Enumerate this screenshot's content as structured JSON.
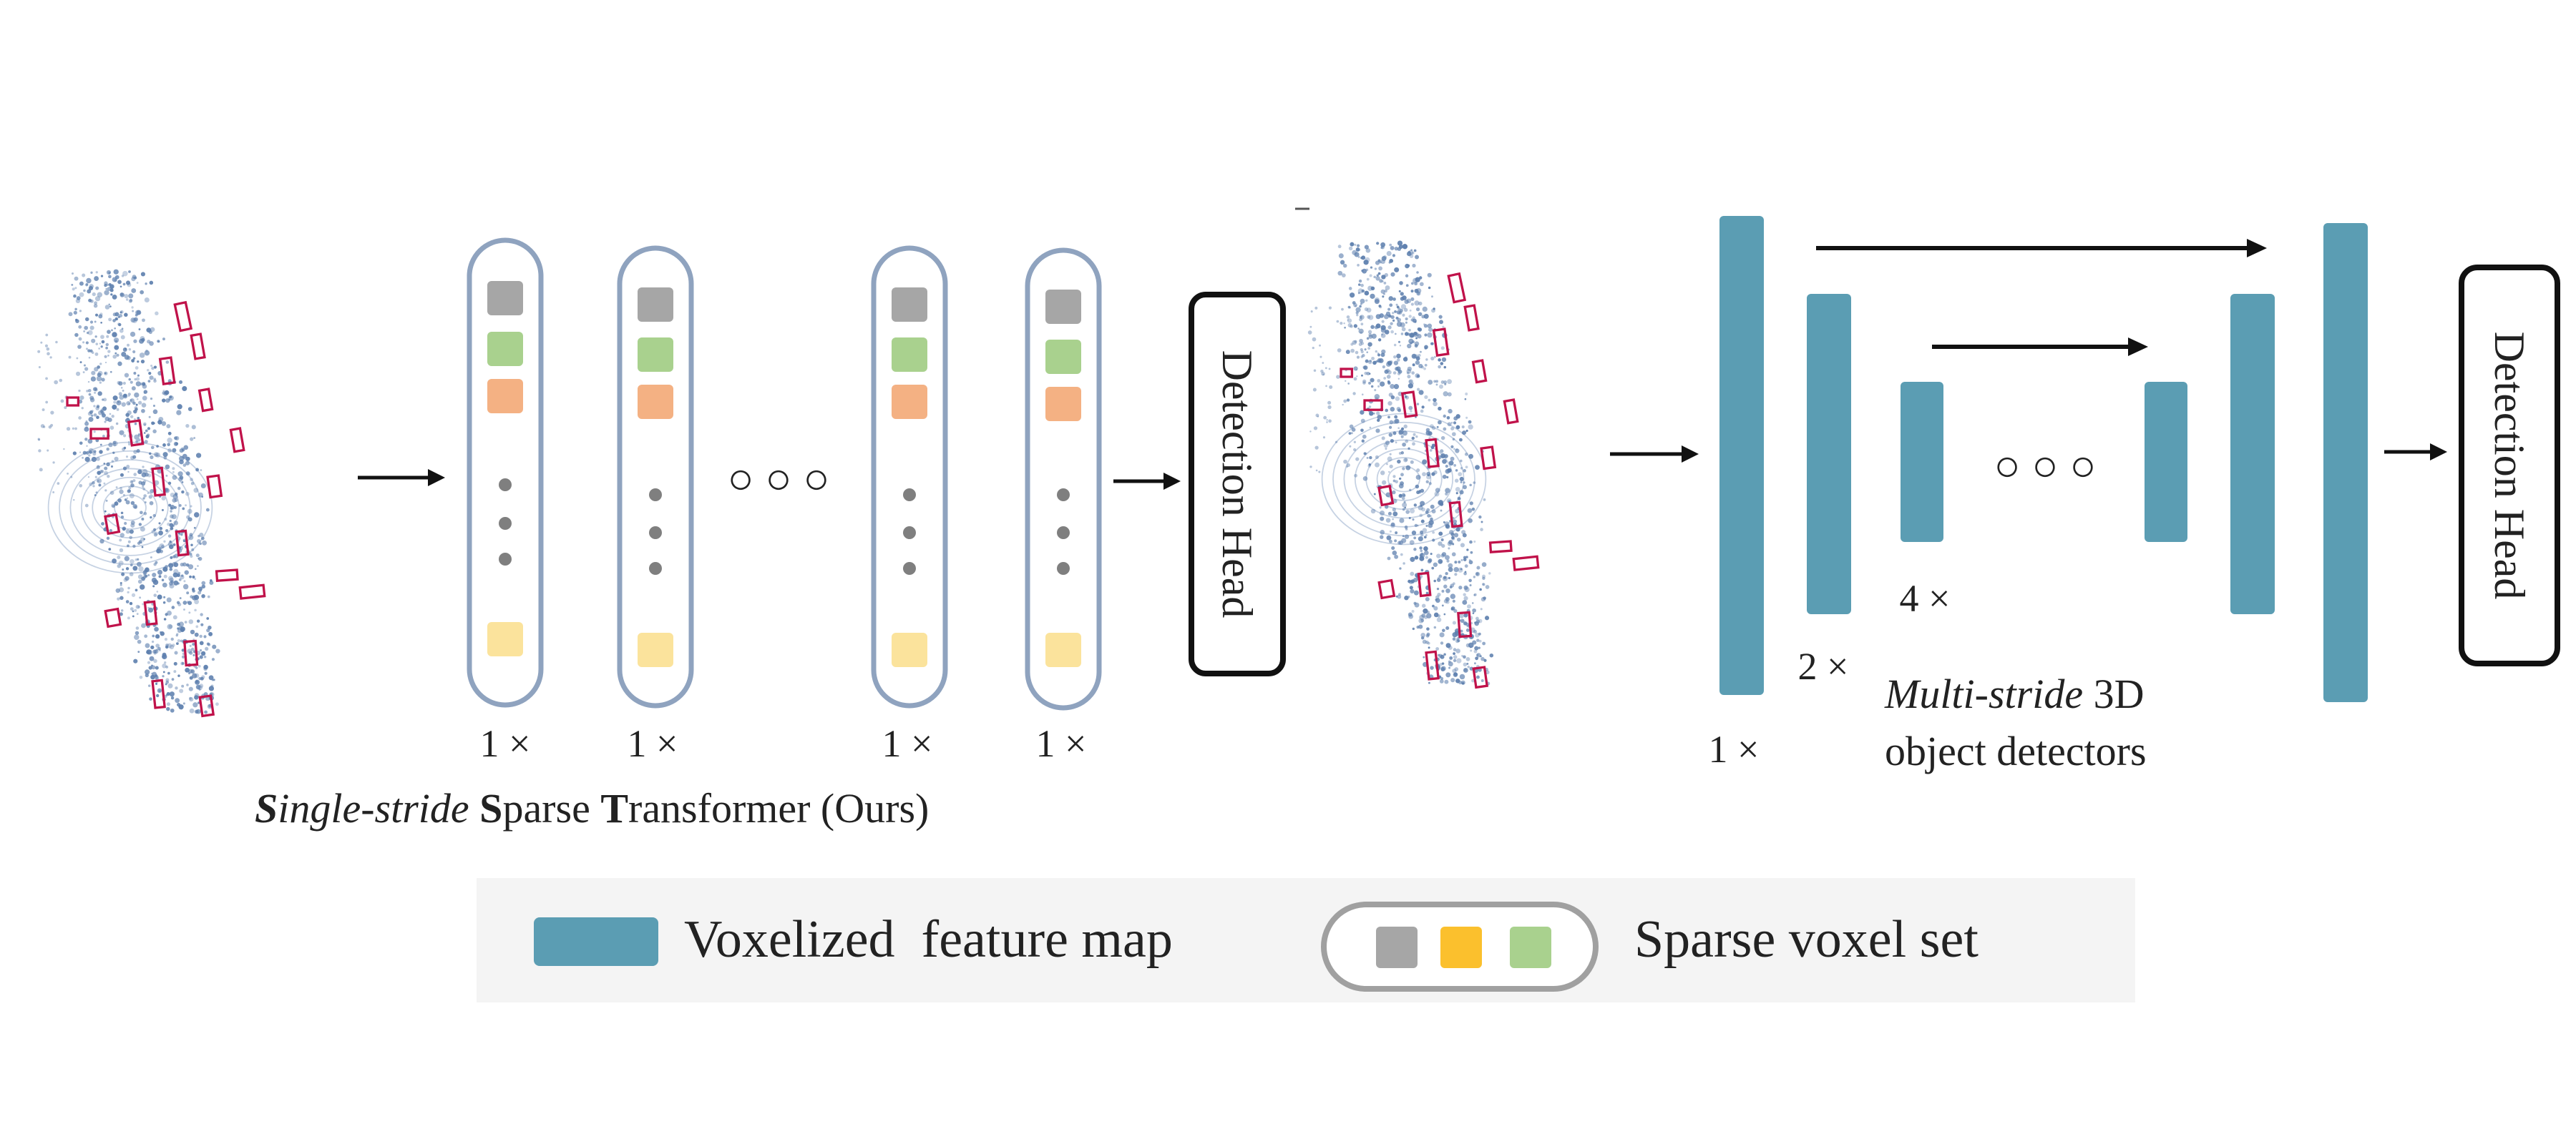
{
  "left_panel": {
    "stride_labels": [
      "1 ×",
      "1 ×",
      "1 ×",
      "1 ×"
    ],
    "ellipsis": "○ ○ ○",
    "detection_head": "Detection Head",
    "caption": {
      "s1": "S",
      "part1": "ingle-stride ",
      "s2": "S",
      "part2": "parse ",
      "t": "T",
      "part3": "ransformer (Ours)"
    }
  },
  "right_panel": {
    "stride_1": "1 ×",
    "stride_2": "2 ×",
    "stride_4": "4 ×",
    "ellipsis": "○ ○ ○",
    "detection_head": "Detection Head",
    "caption_italic": "Multi-stride",
    "caption_rest": " 3D",
    "caption_line2": "object detectors"
  },
  "legend": {
    "voxel_map_label": "Voxelized  feature map",
    "sparse_set_label": "Sparse voxel set"
  },
  "colors": {
    "voxel_gray": "#a6a6a6",
    "voxel_green": "#a9d18e",
    "voxel_orange": "#f4b183",
    "voxel_yellow": "#fbe39c",
    "legend_yellow": "#fbc02d",
    "feature_map_teal": "#5b9db3",
    "container_border": "#8fa3bf",
    "point_cloud_blue": "#5d7fae",
    "bounding_box_red": "#c0124a",
    "legend_background": "#f4f4f4"
  }
}
